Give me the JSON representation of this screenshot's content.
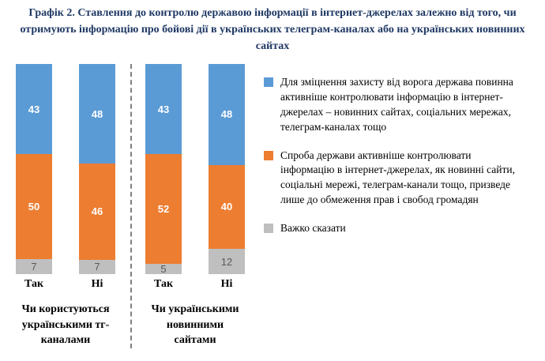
{
  "title": "Графік 2. Ставлення до контролю державою інформації в інтернет-джерелах залежно від того, чи отримують інформацію про бойові дії в українських телеграм-каналах або на українських новинних сайтах",
  "chart_data": {
    "type": "bar",
    "variant": "stacked-percent-column",
    "grid": false,
    "legend_position": "right",
    "ylim": [
      0,
      100
    ],
    "series": [
      {
        "name": "Для зміцнення захисту від ворога держава повинна активніше контролювати інформацію в інтернет-джерелах – новинних сайтах, соціальних мережах, телеграм-каналах тощо",
        "color": "#5B9BD5",
        "value_color": "#FFFFFF"
      },
      {
        "name": "Спроба держави активніше контролювати інформацію в інтернет-джерелах, як новинні сайти, соціальні мережі, телеграм-канали тощо, призведе лише до обмеження прав і свобод громадян",
        "color": "#ED7D31",
        "value_color": "#FFFFFF"
      },
      {
        "name": "Важко сказати",
        "color": "#BFBFBF",
        "value_color": "#595959"
      }
    ],
    "groups": [
      {
        "label": "Чи користуються українськими тг-каналами",
        "bars": [
          {
            "category": "Так",
            "values": [
              43,
              50,
              7
            ]
          },
          {
            "category": "Ні",
            "values": [
              48,
              46,
              7
            ]
          }
        ]
      },
      {
        "label": "Чи українськими новинними сайтами",
        "bars": [
          {
            "category": "Так",
            "values": [
              43,
              52,
              5
            ]
          },
          {
            "category": "Ні",
            "values": [
              48,
              40,
              12
            ]
          }
        ]
      }
    ]
  }
}
